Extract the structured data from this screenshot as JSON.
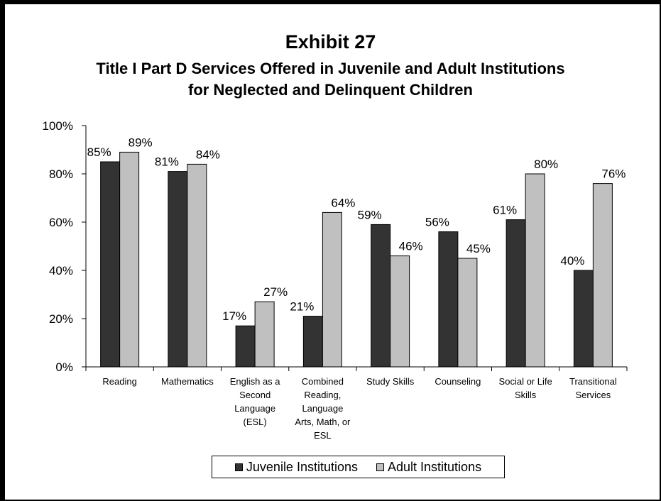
{
  "titles": {
    "exhibit": "Exhibit 27",
    "line1": "Title I Part D Services Offered in Juvenile and Adult Institutions",
    "line2": "for Neglected and Delinquent Children"
  },
  "colors": {
    "juvenile": "#333333",
    "adult": "#c0c0c0",
    "stroke": "#000000"
  },
  "chart_data": {
    "type": "bar",
    "title": "Title I Part D Services Offered in Juvenile and Adult Institutions for Neglected and Delinquent Children",
    "categories": [
      "Reading",
      "Mathematics",
      "English as a Second Language (ESL)",
      "Combined Reading, Language Arts, Math, or ESL",
      "Study Skills",
      "Counseling",
      "Social or Life Skills",
      "Transitional Services"
    ],
    "category_label_lines": [
      [
        "Reading"
      ],
      [
        "Mathematics"
      ],
      [
        "English as a",
        "Second",
        "Language",
        "(ESL)"
      ],
      [
        "Combined",
        "Reading,",
        "Language",
        "Arts, Math, or",
        "ESL"
      ],
      [
        "Study Skills"
      ],
      [
        "Counseling"
      ],
      [
        "Social or Life",
        "Skills"
      ],
      [
        "Transitional",
        "Services"
      ]
    ],
    "series": [
      {
        "name": "Juvenile Institutions",
        "values": [
          85,
          81,
          17,
          21,
          59,
          56,
          61,
          40
        ]
      },
      {
        "name": "Adult Institutions",
        "values": [
          89,
          84,
          27,
          64,
          46,
          45,
          80,
          76
        ]
      }
    ],
    "data_labels": [
      [
        "85%",
        "81%",
        "17%",
        "21%",
        "59%",
        "56%",
        "61%",
        "40%"
      ],
      [
        "89%",
        "84%",
        "27%",
        "64%",
        "46%",
        "45%",
        "80%",
        "76%"
      ]
    ],
    "ylim": [
      0,
      100
    ],
    "yticks": [
      "0%",
      "20%",
      "40%",
      "60%",
      "80%",
      "100%"
    ],
    "xlabel": "",
    "ylabel": "",
    "grid": false,
    "legend_position": "bottom"
  }
}
